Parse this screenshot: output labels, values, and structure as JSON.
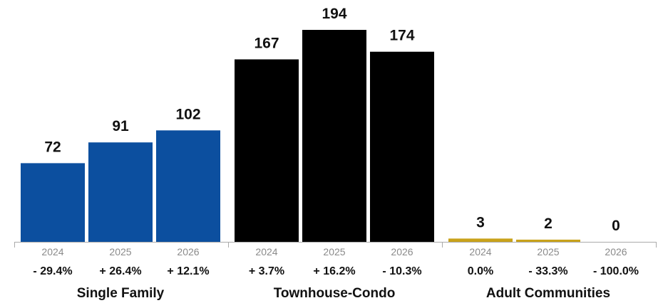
{
  "chart_data": {
    "type": "bar",
    "groups": [
      {
        "name": "Single Family",
        "color": "#0c4f9f",
        "bars": [
          {
            "year": "2024",
            "value": 72,
            "value_label": "72",
            "change": "- 29.4%"
          },
          {
            "year": "2025",
            "value": 91,
            "value_label": "91",
            "change": "+ 26.4%"
          },
          {
            "year": "2026",
            "value": 102,
            "value_label": "102",
            "change": "+ 12.1%"
          }
        ]
      },
      {
        "name": "Townhouse-Condo",
        "color": "#000000",
        "bars": [
          {
            "year": "2024",
            "value": 167,
            "value_label": "167",
            "change": "+ 3.7%"
          },
          {
            "year": "2025",
            "value": 194,
            "value_label": "194",
            "change": "+ 16.2%"
          },
          {
            "year": "2026",
            "value": 174,
            "value_label": "174",
            "change": "- 10.3%"
          }
        ]
      },
      {
        "name": "Adult Communities",
        "color": "#c9a21a",
        "bars": [
          {
            "year": "2024",
            "value": 3,
            "value_label": "3",
            "change": "0.0%"
          },
          {
            "year": "2025",
            "value": 2,
            "value_label": "2",
            "change": "- 33.3%"
          },
          {
            "year": "2026",
            "value": 0,
            "value_label": "0",
            "change": "- 100.0%"
          }
        ]
      }
    ],
    "ylim": [
      0,
      194
    ],
    "grid": false,
    "legend": "none"
  }
}
